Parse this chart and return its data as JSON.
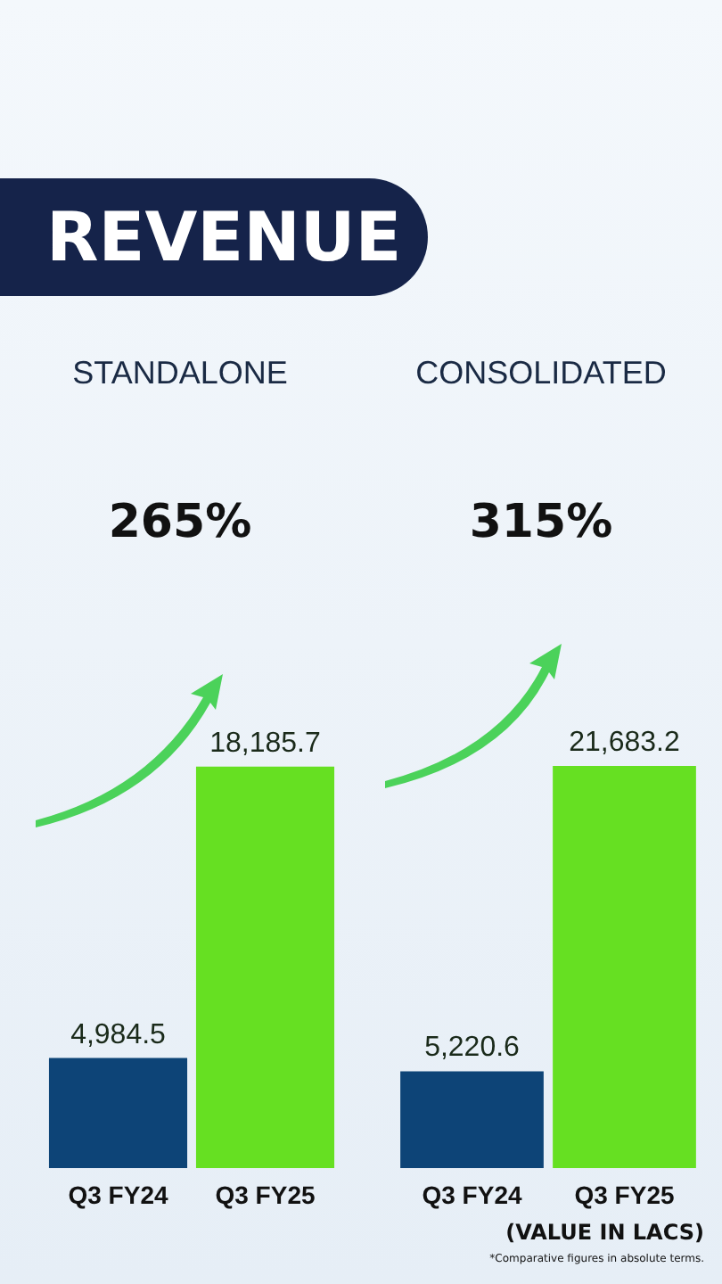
{
  "chart_data": [
    {
      "type": "other",
      "title": "REVENUE"
    },
    {
      "type": "bar",
      "title": "STANDALONE",
      "categories": [
        "Q3 FY24",
        "Q3 FY25"
      ],
      "values": [
        4984.5,
        18185.7
      ],
      "value_labels": [
        "4,984.5",
        "18,185.7"
      ],
      "colors": [
        "#0d4477",
        "#66e022"
      ],
      "annotations": [
        "265%"
      ]
    },
    {
      "type": "bar",
      "title": "CONSOLIDATED",
      "categories": [
        "Q3 FY24",
        "Q3 FY25"
      ],
      "values": [
        5220.6,
        21683.2
      ],
      "value_labels": [
        "5,220.6",
        "21,683.2"
      ],
      "colors": [
        "#0d4477",
        "#66e022"
      ],
      "annotations": [
        "315%",
        "(VALUE IN LACS)",
        "*Comparative figures in absolute terms."
      ]
    }
  ]
}
